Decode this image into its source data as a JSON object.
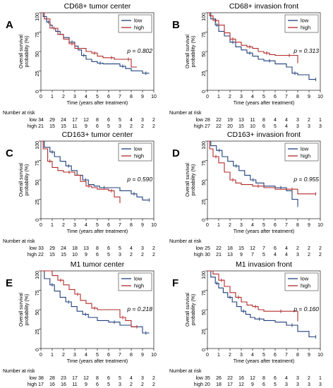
{
  "colors": {
    "low": "#1f3f7a",
    "high": "#b22a2a",
    "axis": "#333333"
  },
  "common": {
    "ylabel": "Overall survival probability (%)",
    "xlabel": "Time (years after treatment)",
    "yticks": [
      "0",
      "25",
      "50",
      "75",
      "100"
    ],
    "xticks": [
      "0",
      "1",
      "2",
      "3",
      "4",
      "5",
      "6",
      "7",
      "8",
      "9",
      "10"
    ],
    "risk_title": "Number at risk",
    "legend_low": "low",
    "legend_high": "high"
  },
  "chart_data": [
    {
      "type": "line",
      "panel": "A",
      "title": "CD68+ tumor center",
      "p": "p = 0.802",
      "xlim": [
        0,
        10
      ],
      "ylim": [
        0,
        100
      ],
      "legend": "top-right",
      "series": [
        {
          "name": "low",
          "x": [
            0,
            0.2,
            0.5,
            0.8,
            1,
            1.3,
            1.7,
            2,
            2.5,
            3,
            3.3,
            3.6,
            4,
            4.5,
            5,
            5.5,
            6,
            7,
            7.5,
            8,
            9,
            9.6
          ],
          "y": [
            100,
            95,
            88,
            84,
            80,
            76,
            72,
            68,
            62,
            57,
            52,
            45,
            40,
            37,
            35,
            34,
            34,
            31,
            28,
            25,
            22,
            22
          ]
        },
        {
          "name": "high",
          "x": [
            0,
            0.3,
            0.8,
            1.5,
            2,
            2.5,
            3,
            4,
            4.5,
            5,
            5.5,
            6,
            6.5,
            7,
            7.5,
            8,
            8.5
          ],
          "y": [
            100,
            92,
            80,
            72,
            66,
            60,
            54,
            50,
            48,
            44,
            42,
            42,
            40,
            40,
            40,
            30,
            30
          ]
        }
      ],
      "risk": {
        "low": [
          "34",
          "29",
          "24",
          "17",
          "12",
          "8",
          "6",
          "5",
          "4",
          "3",
          "2"
        ],
        "high": [
          "21",
          "15",
          "15",
          "11",
          "9",
          "6",
          "5",
          "3",
          "2",
          "2",
          "2"
        ]
      }
    },
    {
      "type": "line",
      "panel": "B",
      "title": "CD68+ invasion front",
      "p": "p = 0.313",
      "xlim": [
        0,
        10
      ],
      "ylim": [
        0,
        100
      ],
      "legend": "top-right",
      "series": [
        {
          "name": "low",
          "x": [
            0,
            0.3,
            0.7,
            1,
            1.5,
            2,
            2.5,
            3,
            3.5,
            4,
            4.5,
            5,
            6,
            7,
            7.5,
            8,
            9,
            9.6
          ],
          "y": [
            100,
            92,
            84,
            76,
            70,
            62,
            56,
            52,
            48,
            44,
            40,
            38,
            34,
            30,
            22,
            20,
            14,
            14
          ]
        },
        {
          "name": "high",
          "x": [
            0,
            0.2,
            0.5,
            1,
            1.5,
            2,
            2.5,
            3,
            3.5,
            4,
            4.5,
            5,
            5.5,
            6,
            7,
            7.5,
            8
          ],
          "y": [
            100,
            96,
            90,
            84,
            74,
            66,
            62,
            58,
            56,
            54,
            50,
            48,
            46,
            45,
            45,
            45,
            35
          ]
        }
      ],
      "risk": {
        "low": [
          "28",
          "22",
          "19",
          "13",
          "11",
          "8",
          "4",
          "4",
          "3",
          "2",
          "1"
        ],
        "high": [
          "27",
          "22",
          "20",
          "15",
          "10",
          "6",
          "5",
          "4",
          "3",
          "3",
          "3"
        ]
      }
    },
    {
      "type": "line",
      "panel": "C",
      "title": "CD163+ tumor center",
      "p": "p = 0.590",
      "xlim": [
        0,
        10
      ],
      "ylim": [
        0,
        100
      ],
      "legend": "top-right",
      "series": [
        {
          "name": "low",
          "x": [
            0,
            0.3,
            0.8,
            1.2,
            1.7,
            2.2,
            2.7,
            3.2,
            3.7,
            4.2,
            4.7,
            5.2,
            6,
            7,
            8,
            8.5,
            9,
            9.6
          ],
          "y": [
            100,
            92,
            86,
            80,
            74,
            68,
            62,
            56,
            50,
            44,
            42,
            40,
            40,
            36,
            32,
            28,
            24,
            24
          ]
        },
        {
          "name": "high",
          "x": [
            0,
            0.2,
            0.6,
            1,
            1.5,
            2,
            3,
            3.5,
            4,
            4.5,
            5,
            6,
            6.5,
            7
          ],
          "y": [
            100,
            90,
            74,
            66,
            62,
            60,
            56,
            48,
            42,
            40,
            38,
            36,
            28,
            20
          ]
        }
      ],
      "risk": {
        "low": [
          "33",
          "29",
          "24",
          "18",
          "13",
          "8",
          "6",
          "5",
          "4",
          "3",
          "2"
        ],
        "high": [
          "22",
          "15",
          "15",
          "10",
          "9",
          "6",
          "5",
          "3",
          "2",
          "2",
          "2"
        ]
      }
    },
    {
      "type": "line",
      "panel": "D",
      "title": "CD163+ invasion front",
      "p": "p = 0.955",
      "xlim": [
        0,
        10
      ],
      "ylim": [
        0,
        100
      ],
      "legend": "top-right",
      "series": [
        {
          "name": "low",
          "x": [
            0,
            0.3,
            0.8,
            1.3,
            1.8,
            2.3,
            2.8,
            3.3,
            3.8,
            4.3,
            5,
            6,
            7,
            7.5,
            8
          ],
          "y": [
            100,
            94,
            88,
            80,
            74,
            68,
            62,
            56,
            50,
            46,
            42,
            40,
            36,
            25,
            17
          ]
        },
        {
          "name": "high",
          "x": [
            0,
            0.2,
            0.5,
            1,
            1.5,
            2,
            2.5,
            3,
            4,
            5,
            6,
            7,
            8,
            9,
            9.6
          ],
          "y": [
            100,
            90,
            80,
            72,
            60,
            50,
            46,
            44,
            42,
            40,
            38,
            38,
            32,
            32,
            32
          ]
        }
      ],
      "risk": {
        "low": [
          "25",
          "22",
          "18",
          "15",
          "12",
          "7",
          "6",
          "4",
          "2",
          "2",
          "2"
        ],
        "high": [
          "30",
          "21",
          "13",
          "9",
          "7",
          "5",
          "4",
          "4",
          "3",
          "2",
          "2"
        ]
      }
    },
    {
      "type": "line",
      "panel": "E",
      "title": "M1 tumor center",
      "p": "p = 0.218",
      "xlim": [
        0,
        10
      ],
      "ylim": [
        0,
        100
      ],
      "legend": "top-right",
      "series": [
        {
          "name": "low",
          "x": [
            0,
            0.3,
            0.8,
            1.2,
            1.7,
            2.2,
            2.7,
            3.2,
            3.7,
            4.2,
            5,
            6,
            7,
            8,
            9,
            9.6
          ],
          "y": [
            100,
            90,
            82,
            74,
            66,
            60,
            54,
            48,
            44,
            40,
            36,
            34,
            30,
            28,
            20,
            20
          ]
        },
        {
          "name": "high",
          "x": [
            0,
            1,
            1.5,
            2,
            2.5,
            3,
            3.5,
            4,
            4.5,
            5,
            6,
            7,
            7.5,
            8,
            8.5
          ],
          "y": [
            100,
            94,
            88,
            82,
            76,
            70,
            62,
            58,
            52,
            50,
            50,
            40,
            36,
            28,
            28
          ]
        }
      ],
      "risk": {
        "low": [
          "38",
          "28",
          "23",
          "17",
          "12",
          "8",
          "6",
          "5",
          "4",
          "3",
          "2"
        ],
        "high": [
          "17",
          "16",
          "16",
          "11",
          "9",
          "6",
          "5",
          "3",
          "2",
          "2",
          "2"
        ]
      }
    },
    {
      "type": "line",
      "panel": "F",
      "title": "M1 invasion front",
      "p": "p = 0.160",
      "xlim": [
        0,
        10
      ],
      "ylim": [
        0,
        100
      ],
      "legend": "top-right",
      "series": [
        {
          "name": "low",
          "x": [
            0,
            0.3,
            0.7,
            1,
            1.4,
            1.8,
            2.2,
            2.6,
            3,
            3.4,
            3.8,
            4.2,
            5,
            6,
            7,
            8,
            9,
            9.6
          ],
          "y": [
            100,
            92,
            84,
            78,
            72,
            66,
            60,
            54,
            48,
            44,
            40,
            38,
            36,
            34,
            30,
            22,
            15,
            15
          ]
        },
        {
          "name": "high",
          "x": [
            0,
            0.5,
            1,
            1.5,
            2,
            2.5,
            3,
            3.5,
            4,
            4.5,
            5,
            6,
            7,
            8
          ],
          "y": [
            100,
            96,
            88,
            80,
            72,
            66,
            60,
            56,
            54,
            50,
            48,
            48,
            48,
            35
          ]
        }
      ],
      "risk": {
        "low": [
          "35",
          "26",
          "22",
          "16",
          "12",
          "8",
          "6",
          "4",
          "3",
          "2",
          "1"
        ],
        "high": [
          "20",
          "18",
          "17",
          "12",
          "9",
          "6",
          "5",
          "3",
          "3",
          "3",
          "3"
        ]
      }
    }
  ]
}
